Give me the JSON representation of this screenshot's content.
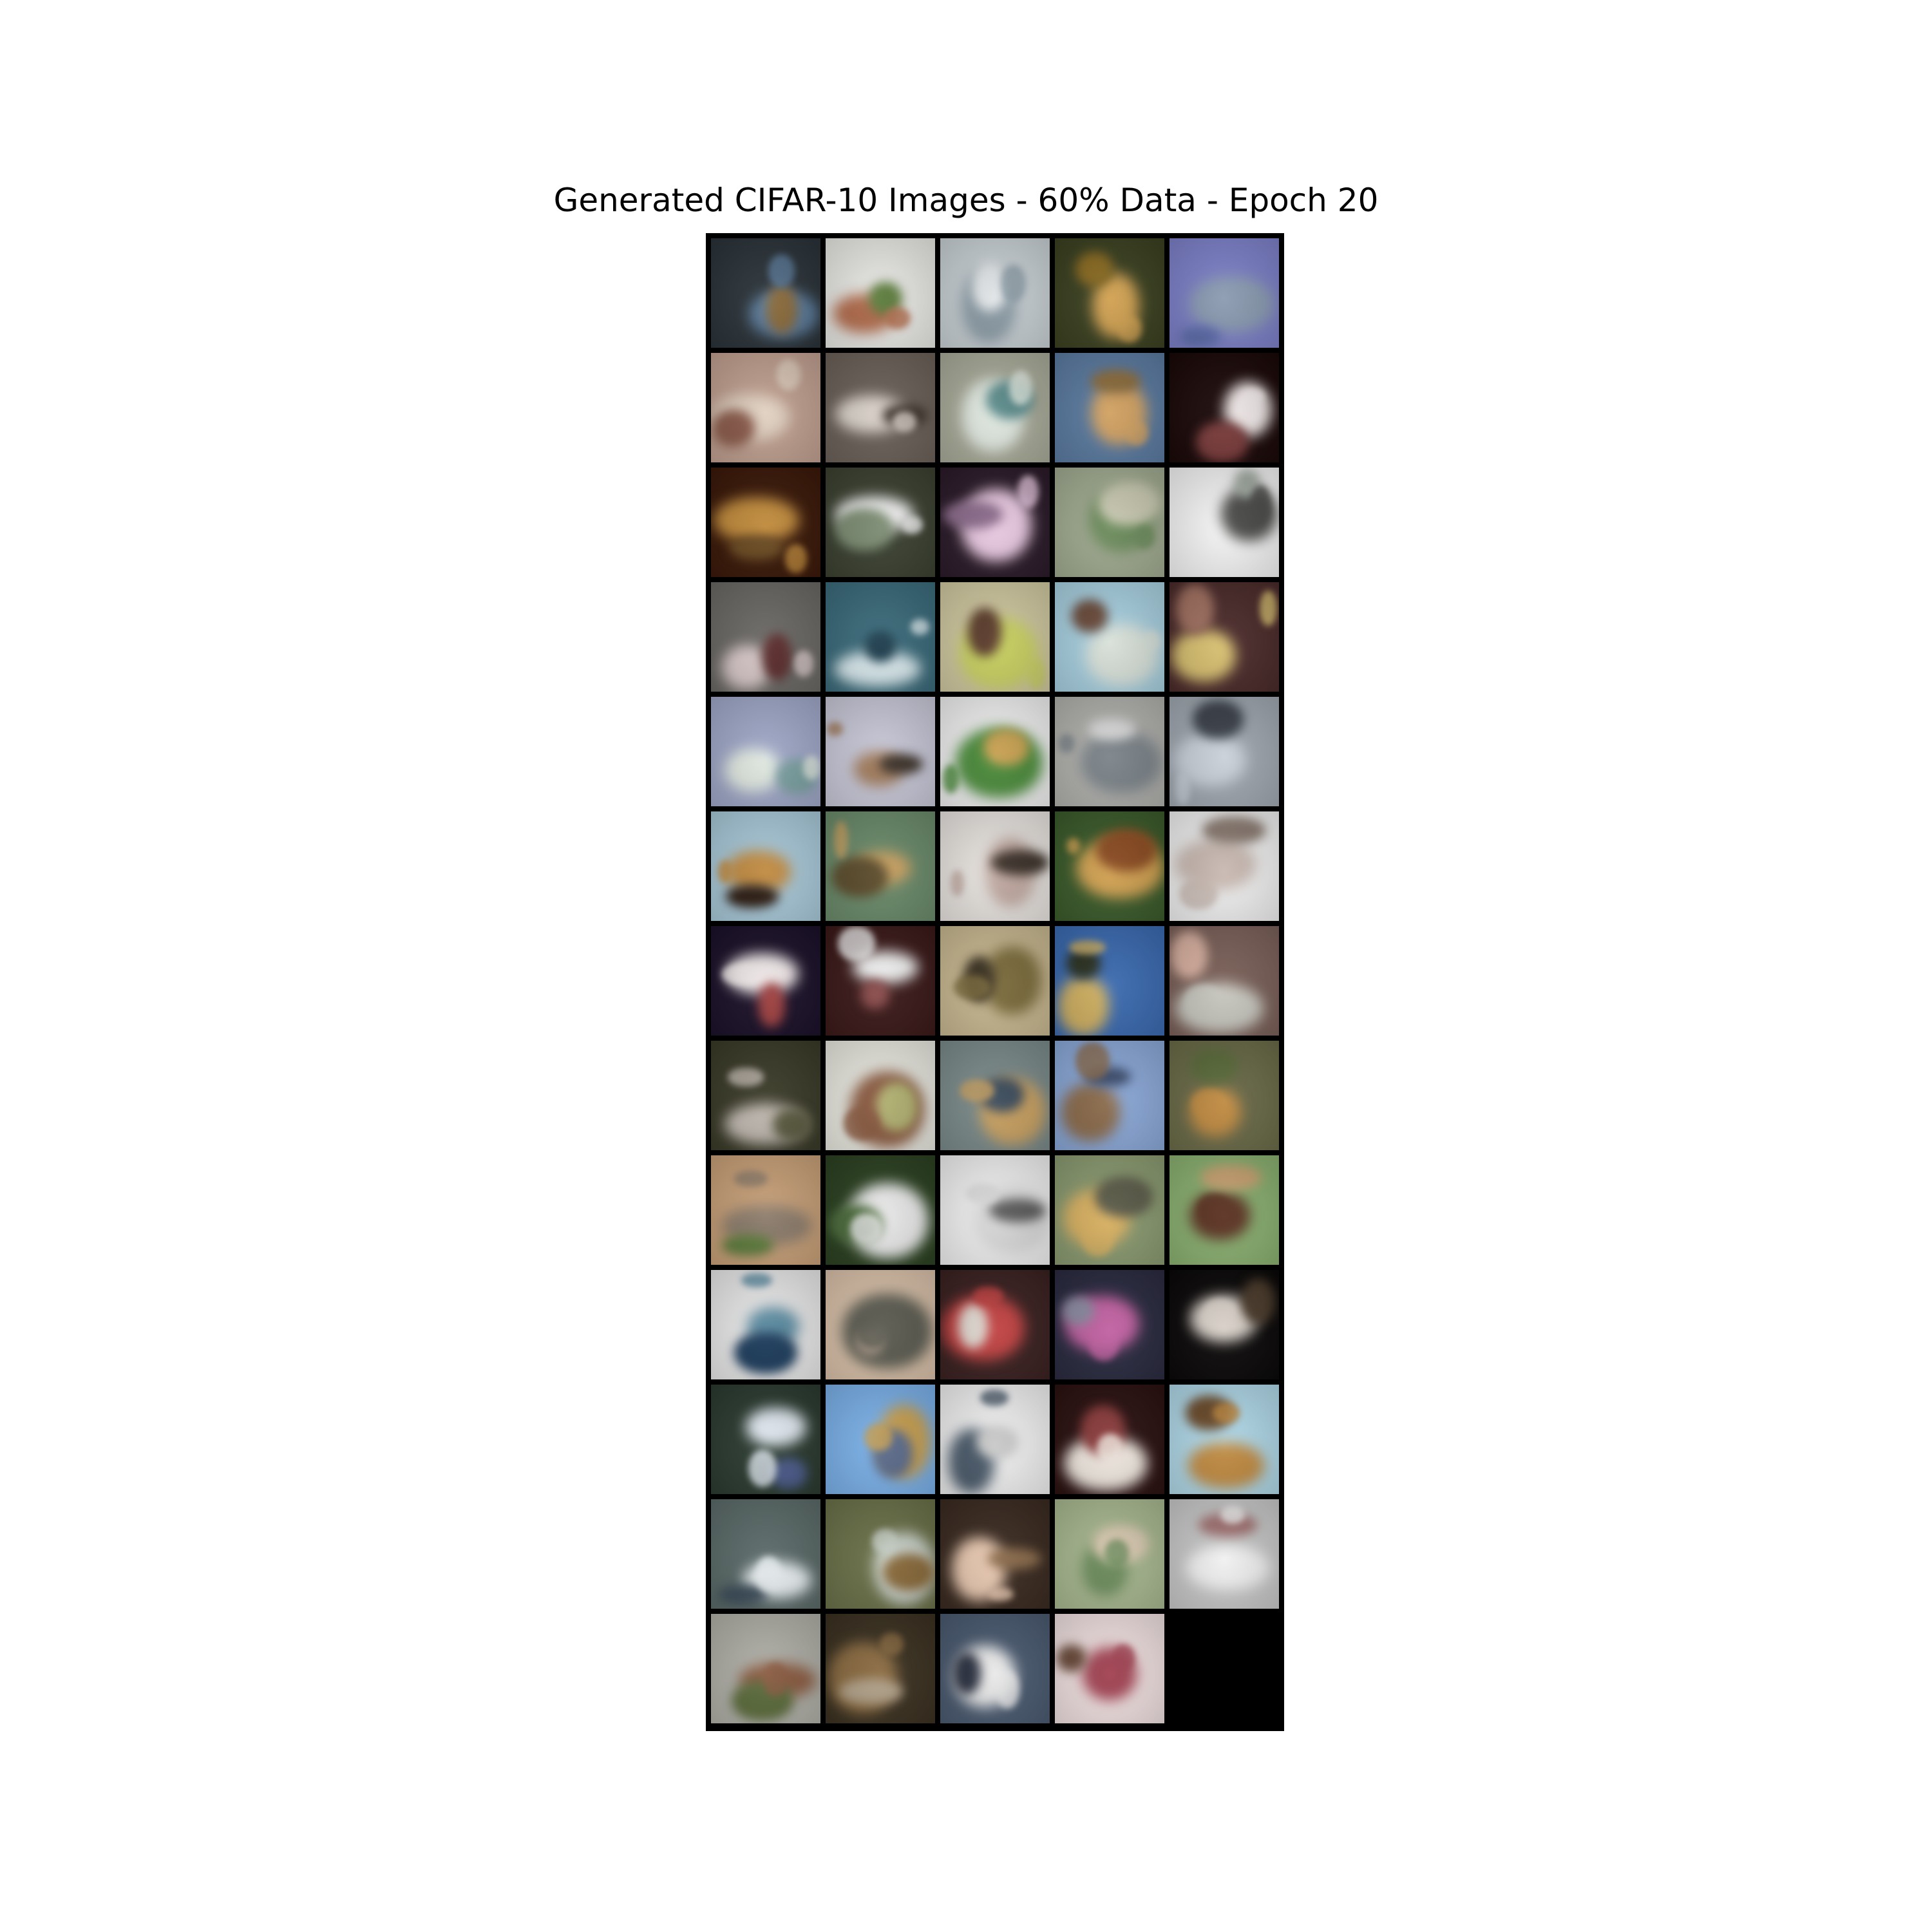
{
  "figure": {
    "title": "Generated CIFAR-10 Images - 60% Data - Epoch 20"
  },
  "grid": {
    "columns": 5,
    "rows": 13,
    "image_count": 64,
    "cells": [
      {
        "bg": "#2a3238",
        "fg": "#5a7a9a",
        "ac": "#8a6a3a"
      },
      {
        "bg": "#e8e8e4",
        "fg": "#b06a4a",
        "ac": "#5a7a3a"
      },
      {
        "bg": "#c8d0d4",
        "fg": "#8a9aa4",
        "ac": "#e0e4e6"
      },
      {
        "bg": "#3a4020",
        "fg": "#d0a050",
        "ac": "#8a6a20"
      },
      {
        "bg": "#7c80c8",
        "fg": "#8a9ab0",
        "ac": "#5a6aa8"
      },
      {
        "bg": "#c0a090",
        "fg": "#e0d0c0",
        "ac": "#8a5a4a"
      },
      {
        "bg": "#6a6058",
        "fg": "#d8d0c8",
        "ac": "#3a3028"
      },
      {
        "bg": "#a8aa98",
        "fg": "#e0e8e0",
        "ac": "#5a8a8a"
      },
      {
        "bg": "#5a7aa0",
        "fg": "#d0a060",
        "ac": "#8a6a3a"
      },
      {
        "bg": "#1a0808",
        "fg": "#f0e8e8",
        "ac": "#7a3a3a"
      },
      {
        "bg": "#3a1808",
        "fg": "#c08a3a",
        "ac": "#6a4a20"
      },
      {
        "bg": "#3a4030",
        "fg": "#f0f0f0",
        "ac": "#7a8a70"
      },
      {
        "bg": "#2a1a28",
        "fg": "#e8c8e0",
        "ac": "#8a6a8a"
      },
      {
        "bg": "#a0aa90",
        "fg": "#6a8a5a",
        "ac": "#c8c8b0"
      },
      {
        "bg": "#f4f4f4",
        "fg": "#4a4a48",
        "ac": "#a0a8a0"
      },
      {
        "bg": "#6a6864",
        "fg": "#d8c8c8",
        "ac": "#5a2a2a"
      },
      {
        "bg": "#3a6a7a",
        "fg": "#d8e8ec",
        "ac": "#1a3a4a"
      },
      {
        "bg": "#d0c8a0",
        "fg": "#c8d060",
        "ac": "#5a3a2a"
      },
      {
        "bg": "#a8d0e0",
        "fg": "#d8e0d8",
        "ac": "#6a4a3a"
      },
      {
        "bg": "#4a2a2a",
        "fg": "#d8c070",
        "ac": "#a07060"
      },
      {
        "bg": "#a0a8c8",
        "fg": "#e0e8e0",
        "ac": "#7aa0a0"
      },
      {
        "bg": "#c8c8d8",
        "fg": "#a07a5a",
        "ac": "#3a3028"
      },
      {
        "bg": "#f0f0f0",
        "fg": "#4a8a3a",
        "ac": "#c8a050"
      },
      {
        "bg": "#b0b0ac",
        "fg": "#7a8288",
        "ac": "#d8d8d8"
      },
      {
        "bg": "#a0a8b0",
        "fg": "#c8d0d8",
        "ac": "#3a4048"
      },
      {
        "bg": "#a8c8d8",
        "fg": "#c08a40",
        "ac": "#2a1a10"
      },
      {
        "bg": "#6a8a6a",
        "fg": "#c8a060",
        "ac": "#5a4a2a"
      },
      {
        "bg": "#e8e4e0",
        "fg": "#c0a8a0",
        "ac": "#3a3028"
      },
      {
        "bg": "#3a5a2a",
        "fg": "#d0a050",
        "ac": "#8a4a20"
      },
      {
        "bg": "#f0f0f0",
        "fg": "#c8b8b0",
        "ac": "#8a7a70"
      },
      {
        "bg": "#1a1028",
        "fg": "#f0e8e8",
        "ac": "#a04040"
      },
      {
        "bg": "#3a1818",
        "fg": "#f0f0f0",
        "ac": "#8a4a4a"
      },
      {
        "bg": "#c8b890",
        "fg": "#7a6a3a",
        "ac": "#3a3020"
      },
      {
        "bg": "#3a6ab0",
        "fg": "#d0b060",
        "ac": "#2a3020"
      },
      {
        "bg": "#7a6058",
        "fg": "#c8c8c0",
        "ac": "#d8b0a0"
      },
      {
        "bg": "#3a3a28",
        "fg": "#c0b8b0",
        "ac": "#5a5a40"
      },
      {
        "bg": "#e8e8e0",
        "fg": "#8a5a40",
        "ac": "#b0b070"
      },
      {
        "bg": "#7a8a8a",
        "fg": "#c8a060",
        "ac": "#3a4a5a"
      },
      {
        "bg": "#8aa8d8",
        "fg": "#8a6a4a",
        "ac": "#3a4a6a"
      },
      {
        "bg": "#6a6a48",
        "fg": "#c08a40",
        "ac": "#5a6a3a"
      },
      {
        "bg": "#c8a078",
        "fg": "#8a7a6a",
        "ac": "#5a7a3a"
      },
      {
        "bg": "#2a4020",
        "fg": "#e8e8e8",
        "ac": "#4a6a3a"
      },
      {
        "bg": "#f0f0f0",
        "fg": "#d8d8d8",
        "ac": "#5a5a5a"
      },
      {
        "bg": "#8a9a70",
        "fg": "#d8b060",
        "ac": "#5a5a48"
      },
      {
        "bg": "#8ab070",
        "fg": "#5a3020",
        "ac": "#c8a070"
      },
      {
        "bg": "#e8e8e8",
        "fg": "#5a8aa0",
        "ac": "#1a3a5a"
      },
      {
        "bg": "#d8c0a8",
        "fg": "#5a5a50",
        "ac": "#a09080"
      },
      {
        "bg": "#3a2020",
        "fg": "#c04040",
        "ac": "#e0d8d0"
      },
      {
        "bg": "#2a2a40",
        "fg": "#c060a0",
        "ac": "#8a8aa0"
      },
      {
        "bg": "#0a0808",
        "fg": "#d8d0c8",
        "ac": "#4a3a2a"
      },
      {
        "bg": "#2a3a30",
        "fg": "#e0e8f0",
        "ac": "#4a5a8a"
      },
      {
        "bg": "#7ab0e8",
        "fg": "#c8a050",
        "ac": "#5a6a8a"
      },
      {
        "bg": "#f0f0f0",
        "fg": "#4a5a6a",
        "ac": "#c8c8c8"
      },
      {
        "bg": "#2a1010",
        "fg": "#f0e8e0",
        "ac": "#8a3a3a"
      },
      {
        "bg": "#b0d8e8",
        "fg": "#c08a40",
        "ac": "#6a4a2a"
      },
      {
        "bg": "#5a6a68",
        "fg": "#e8eef0",
        "ac": "#3a4a58"
      },
      {
        "bg": "#6a7048",
        "fg": "#c8d0c8",
        "ac": "#8a6a3a"
      },
      {
        "bg": "#3a2a20",
        "fg": "#e8c8b0",
        "ac": "#8a6a4a"
      },
      {
        "bg": "#a8b890",
        "fg": "#6a8a5a",
        "ac": "#d8c8b0"
      },
      {
        "bg": "#c8c8c8",
        "fg": "#f0f0f0",
        "ac": "#a07070"
      },
      {
        "bg": "#b0b0a8",
        "fg": "#8a5a40",
        "ac": "#5a6a3a"
      },
      {
        "bg": "#3a3020",
        "fg": "#8a6a40",
        "ac": "#b0a088"
      },
      {
        "bg": "#4a5a70",
        "fg": "#e8e8e8",
        "ac": "#2a3040"
      },
      {
        "bg": "#f0e0e0",
        "fg": "#a04050",
        "ac": "#6a4a3a"
      }
    ]
  }
}
